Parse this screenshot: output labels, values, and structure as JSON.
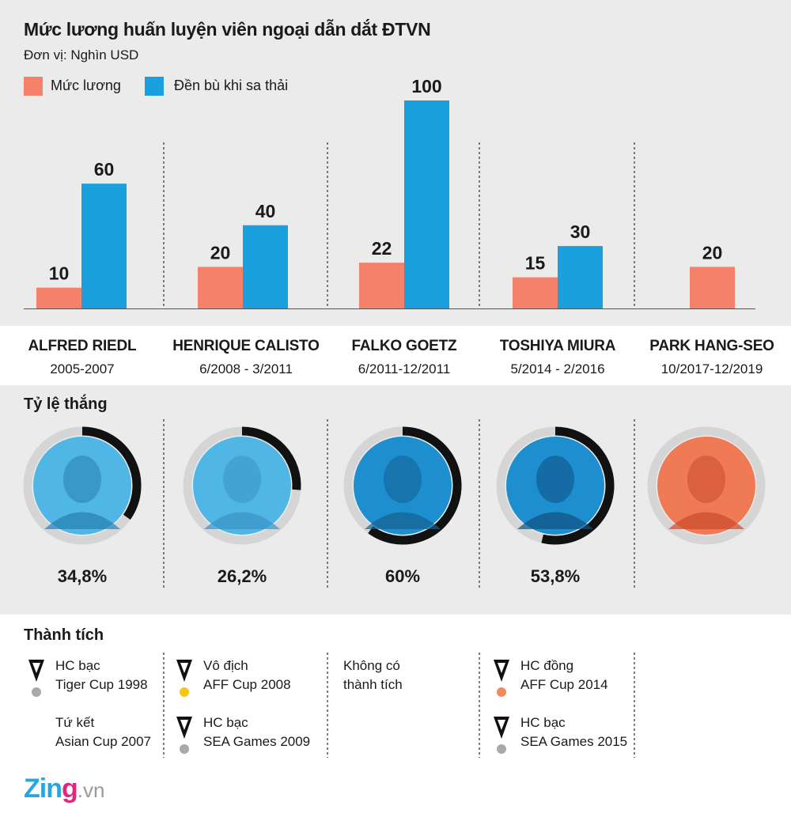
{
  "title": "Mức lương huấn luyện viên ngoại dẫn dắt ĐTVN",
  "unit": "Đơn vị: Nghìn USD",
  "legend": [
    {
      "label": "Mức lương",
      "color": "#f4826b"
    },
    {
      "label": "Đền bù khi sa thải",
      "color": "#1aa0dc"
    }
  ],
  "chart_data": {
    "type": "bar",
    "title": "Mức lương huấn luyện viên ngoại dẫn dắt ĐTVN",
    "ylabel": "Đơn vị: Nghìn USD",
    "categories": [
      "ALFRED RIEDL",
      "HENRIQUE CALISTO",
      "FALKO GOETZ",
      "TOSHIYA MIURA",
      "PARK HANG-SEO"
    ],
    "series": [
      {
        "name": "Mức lương",
        "color": "#f4826b",
        "values": [
          10,
          20,
          22,
          15,
          20
        ]
      },
      {
        "name": "Đền bù khi sa thải",
        "color": "#1aa0dc",
        "values": [
          60,
          40,
          100,
          30,
          null
        ]
      }
    ],
    "ylim": [
      0,
      100
    ],
    "grid": false,
    "legend_position": "top-left"
  },
  "coaches": [
    {
      "name": "ALFRED RIEDL",
      "period": "2005-2007",
      "win_rate_label": "34,8%",
      "win_rate": 34.8,
      "ring": "gray"
    },
    {
      "name": "HENRIQUE CALISTO",
      "period": "6/2008 - 3/2011",
      "win_rate_label": "26,2%",
      "win_rate": 26.2,
      "ring": "gray"
    },
    {
      "name": "FALKO GOETZ",
      "period": "6/2011-12/2011",
      "win_rate_label": "60%",
      "win_rate": 60,
      "ring": "gray"
    },
    {
      "name": "TOSHIYA MIURA",
      "period": "5/2014 - 2/2016",
      "win_rate_label": "53,8%",
      "win_rate": 53.8,
      "ring": "gray"
    },
    {
      "name": "PARK HANG-SEO",
      "period": "10/2017-12/2019",
      "win_rate_label": "",
      "win_rate": null,
      "ring": "gray"
    }
  ],
  "win_section_title": "Tỷ lệ thắng",
  "achievements_title": "Thành tích",
  "achievements": [
    [
      {
        "medal": "silver",
        "line1": "HC bạc",
        "line2": "Tiger Cup 1998"
      },
      {
        "medal": "none",
        "line1": "Tứ kết",
        "line2": "Asian Cup 2007"
      }
    ],
    [
      {
        "medal": "gold",
        "line1": "Vô địch",
        "line2": "AFF Cup 2008"
      },
      {
        "medal": "silver",
        "line1": "HC bạc",
        "line2": "SEA Games 2009"
      }
    ],
    [
      {
        "medal": "none",
        "line1": "Không có",
        "line2": "thành tích"
      }
    ],
    [
      {
        "medal": "bronze",
        "line1": "HC đồng",
        "line2": "AFF Cup 2014"
      },
      {
        "medal": "silver",
        "line1": "HC bạc",
        "line2": "SEA Games 2015"
      }
    ],
    []
  ],
  "medal_colors": {
    "gold": "#f5c518",
    "silver": "#a9a9a9",
    "bronze": "#f08a5d"
  },
  "logo": {
    "brand": "Zing",
    "suffix": ".vn"
  }
}
